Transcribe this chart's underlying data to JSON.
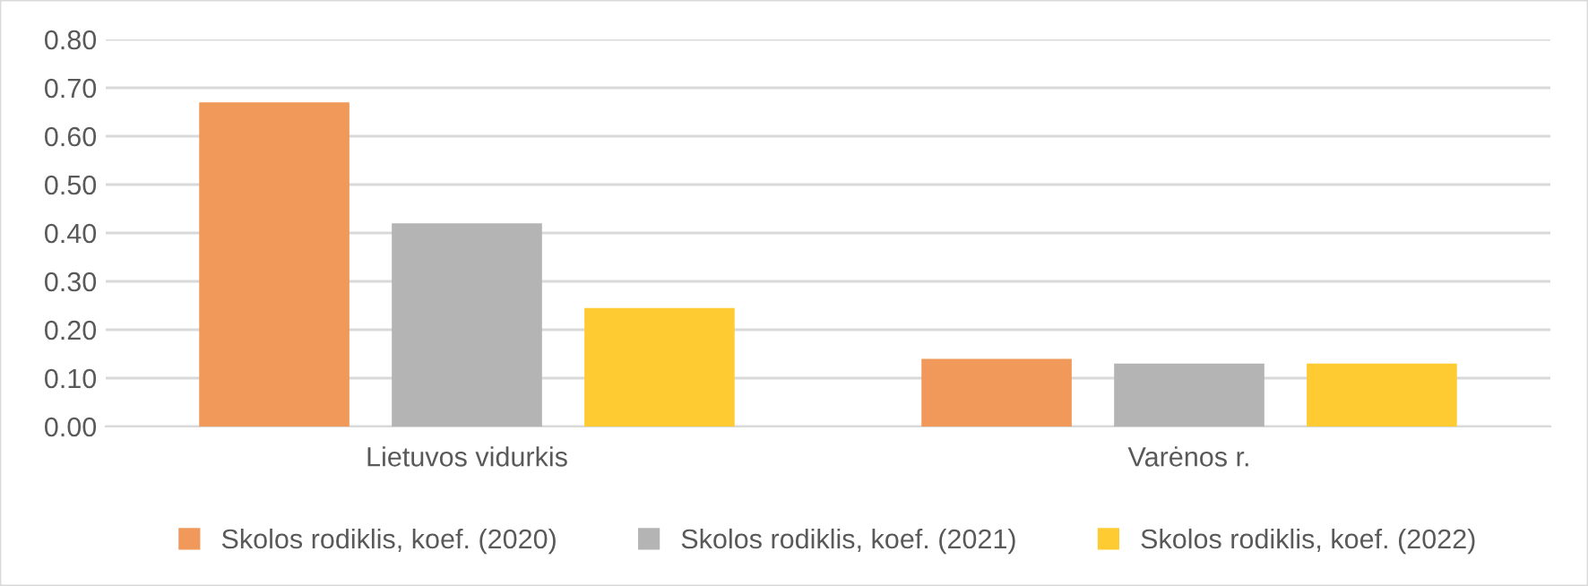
{
  "chart_data": {
    "type": "bar",
    "categories": [
      "Lietuvos vidurkis",
      "Varėnos r."
    ],
    "series": [
      {
        "name": "Skolos rodiklis, koef. (2020)",
        "color": "#f0995a",
        "values": [
          0.67,
          0.14
        ]
      },
      {
        "name": "Skolos rodiklis, koef. (2021)",
        "color": "#b4b4b4",
        "values": [
          0.42,
          0.13
        ]
      },
      {
        "name": "Skolos rodiklis, koef. (2022)",
        "color": "#ffcb33",
        "values": [
          0.245,
          0.13
        ]
      }
    ],
    "ylim": [
      0,
      0.8
    ],
    "yticks": [
      {
        "value": 0,
        "label": "0.00"
      },
      {
        "value": 0.1,
        "label": "0.10"
      },
      {
        "value": 0.2,
        "label": "0.20"
      },
      {
        "value": 0.3,
        "label": "0.30"
      },
      {
        "value": 0.4,
        "label": "0.40"
      },
      {
        "value": 0.5,
        "label": "0.50"
      },
      {
        "value": 0.6,
        "label": "0.60"
      },
      {
        "value": 0.7,
        "label": "0.70"
      },
      {
        "value": 0.8,
        "label": "0.80"
      }
    ],
    "grid": "y",
    "legend": "bottom"
  }
}
